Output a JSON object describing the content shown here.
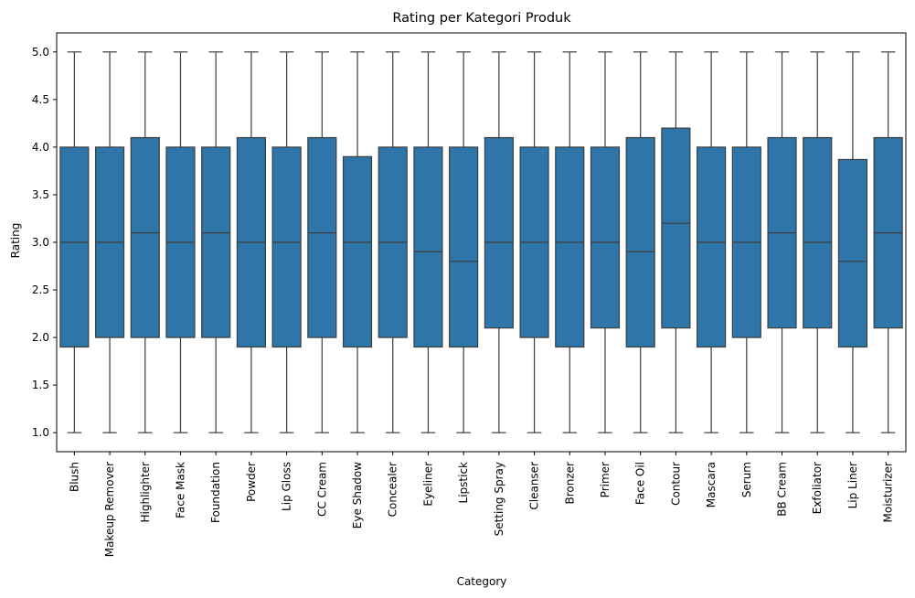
{
  "chart_data": {
    "type": "boxplot",
    "title": "Rating per Kategori Produk",
    "xlabel": "Category",
    "ylabel": "Rating",
    "ylim": [
      0.8,
      5.2
    ],
    "yticks": [
      1.0,
      1.5,
      2.0,
      2.5,
      3.0,
      3.5,
      4.0,
      4.5,
      5.0
    ],
    "ytick_labels": [
      "1.0",
      "1.5",
      "2.0",
      "2.5",
      "3.0",
      "3.5",
      "4.0",
      "4.5",
      "5.0"
    ],
    "grid": false,
    "box_color": "#2e75a9",
    "line_color": "#3d3d3d",
    "categories": [
      "Blush",
      "Makeup Remover",
      "Highlighter",
      "Face Mask",
      "Foundation",
      "Powder",
      "Lip Gloss",
      "CC Cream",
      "Eye Shadow",
      "Concealer",
      "Eyeliner",
      "Lipstick",
      "Setting Spray",
      "Cleanser",
      "Bronzer",
      "Primer",
      "Face Oil",
      "Contour",
      "Mascara",
      "Serum",
      "BB Cream",
      "Exfoliator",
      "Lip Liner",
      "Moisturizer"
    ],
    "series": [
      {
        "min": 1.0,
        "q1": 1.9,
        "median": 3.0,
        "q3": 4.0,
        "max": 5.0
      },
      {
        "min": 1.0,
        "q1": 2.0,
        "median": 3.0,
        "q3": 4.0,
        "max": 5.0
      },
      {
        "min": 1.0,
        "q1": 2.0,
        "median": 3.1,
        "q3": 4.1,
        "max": 5.0
      },
      {
        "min": 1.0,
        "q1": 2.0,
        "median": 3.0,
        "q3": 4.0,
        "max": 5.0
      },
      {
        "min": 1.0,
        "q1": 2.0,
        "median": 3.1,
        "q3": 4.0,
        "max": 5.0
      },
      {
        "min": 1.0,
        "q1": 1.9,
        "median": 3.0,
        "q3": 4.1,
        "max": 5.0
      },
      {
        "min": 1.0,
        "q1": 1.9,
        "median": 3.0,
        "q3": 4.0,
        "max": 5.0
      },
      {
        "min": 1.0,
        "q1": 2.0,
        "median": 3.1,
        "q3": 4.1,
        "max": 5.0
      },
      {
        "min": 1.0,
        "q1": 1.9,
        "median": 3.0,
        "q3": 3.9,
        "max": 5.0
      },
      {
        "min": 1.0,
        "q1": 2.0,
        "median": 3.0,
        "q3": 4.0,
        "max": 5.0
      },
      {
        "min": 1.0,
        "q1": 1.9,
        "median": 2.9,
        "q3": 4.0,
        "max": 5.0
      },
      {
        "min": 1.0,
        "q1": 1.9,
        "median": 2.8,
        "q3": 4.0,
        "max": 5.0
      },
      {
        "min": 1.0,
        "q1": 2.1,
        "median": 3.0,
        "q3": 4.1,
        "max": 5.0
      },
      {
        "min": 1.0,
        "q1": 2.0,
        "median": 3.0,
        "q3": 4.0,
        "max": 5.0
      },
      {
        "min": 1.0,
        "q1": 1.9,
        "median": 3.0,
        "q3": 4.0,
        "max": 5.0
      },
      {
        "min": 1.0,
        "q1": 2.1,
        "median": 3.0,
        "q3": 4.0,
        "max": 5.0
      },
      {
        "min": 1.0,
        "q1": 1.9,
        "median": 2.9,
        "q3": 4.1,
        "max": 5.0
      },
      {
        "min": 1.0,
        "q1": 2.1,
        "median": 3.2,
        "q3": 4.2,
        "max": 5.0
      },
      {
        "min": 1.0,
        "q1": 1.9,
        "median": 3.0,
        "q3": 4.0,
        "max": 5.0
      },
      {
        "min": 1.0,
        "q1": 2.0,
        "median": 3.0,
        "q3": 4.0,
        "max": 5.0
      },
      {
        "min": 1.0,
        "q1": 2.1,
        "median": 3.1,
        "q3": 4.1,
        "max": 5.0
      },
      {
        "min": 1.0,
        "q1": 2.1,
        "median": 3.0,
        "q3": 4.1,
        "max": 5.0
      },
      {
        "min": 1.0,
        "q1": 1.9,
        "median": 2.8,
        "q3": 3.87,
        "max": 5.0
      },
      {
        "min": 1.0,
        "q1": 2.1,
        "median": 3.1,
        "q3": 4.1,
        "max": 5.0
      }
    ]
  }
}
